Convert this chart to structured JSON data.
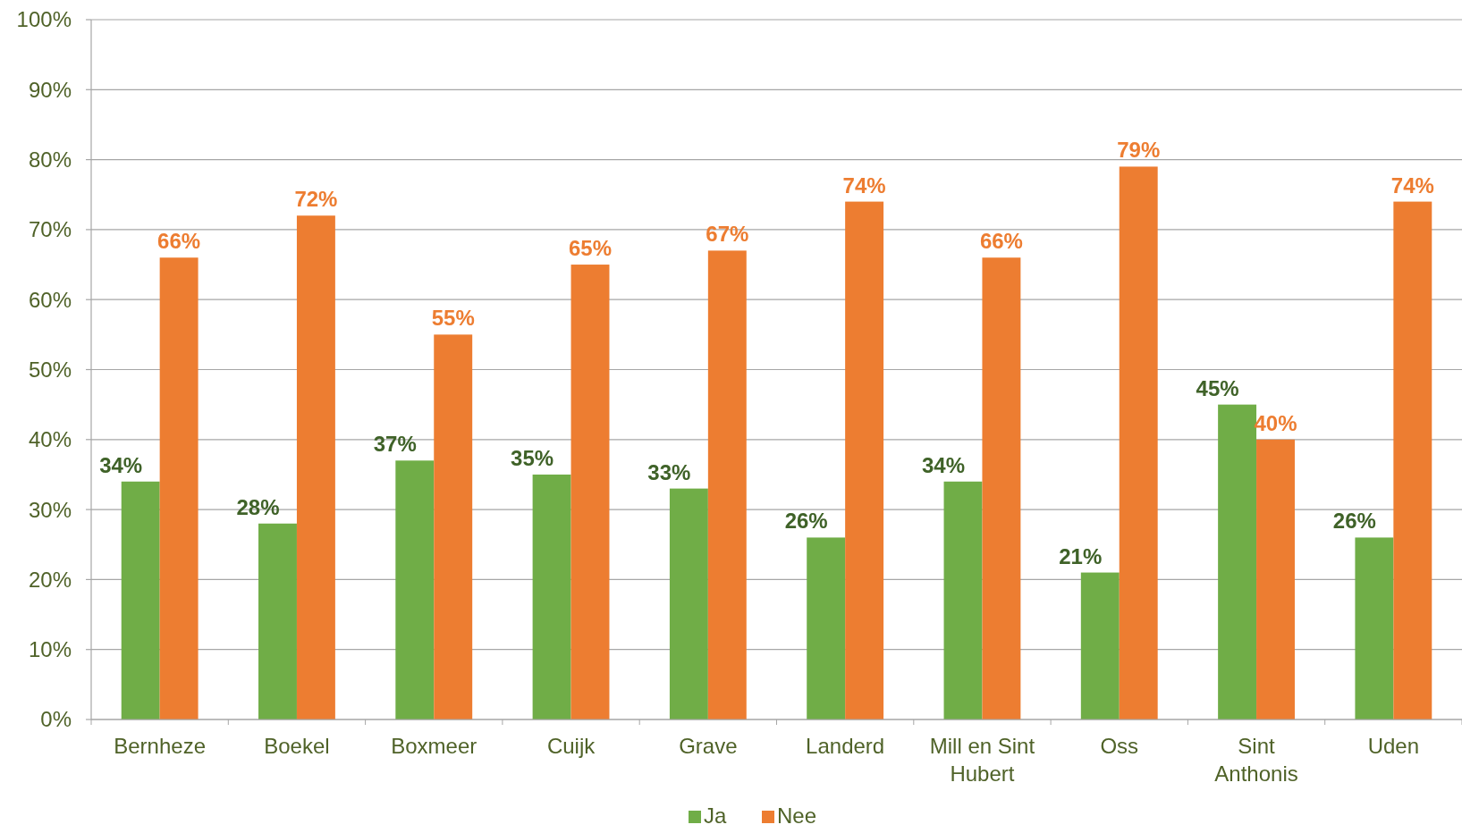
{
  "chart_data": {
    "type": "bar",
    "categories": [
      "Bernheze",
      "Boekel",
      "Boxmeer",
      "Cuijk",
      "Grave",
      "Landerd",
      "Mill en Sint Hubert",
      "Oss",
      "Sint Anthonis",
      "Uden"
    ],
    "series": [
      {
        "name": "Ja",
        "color": "#70ad47",
        "values": [
          34,
          28,
          37,
          35,
          33,
          26,
          34,
          21,
          45,
          26
        ],
        "value_labels": [
          "34%",
          "28%",
          "37%",
          "35%",
          "33%",
          "26%",
          "34%",
          "21%",
          "45%",
          "26%"
        ]
      },
      {
        "name": "Nee",
        "color": "#ed7d31",
        "values": [
          66,
          72,
          55,
          65,
          67,
          74,
          66,
          79,
          40,
          74
        ],
        "value_labels": [
          "66%",
          "72%",
          "55%",
          "65%",
          "67%",
          "74%",
          "66%",
          "79%",
          "40%",
          "74%"
        ]
      }
    ],
    "ylim": [
      0,
      100
    ],
    "yticks": [
      {
        "value": 0,
        "label": "0%"
      },
      {
        "value": 10,
        "label": "10%"
      },
      {
        "value": 20,
        "label": "20%"
      },
      {
        "value": 30,
        "label": "30%"
      },
      {
        "value": 40,
        "label": "40%"
      },
      {
        "value": 50,
        "label": "50%"
      },
      {
        "value": 60,
        "label": "60%"
      },
      {
        "value": 70,
        "label": "70%"
      },
      {
        "value": 80,
        "label": "80%"
      },
      {
        "value": 90,
        "label": "90%"
      },
      {
        "value": 100,
        "label": "100%"
      }
    ],
    "grid": "y",
    "legend": "bottom"
  }
}
